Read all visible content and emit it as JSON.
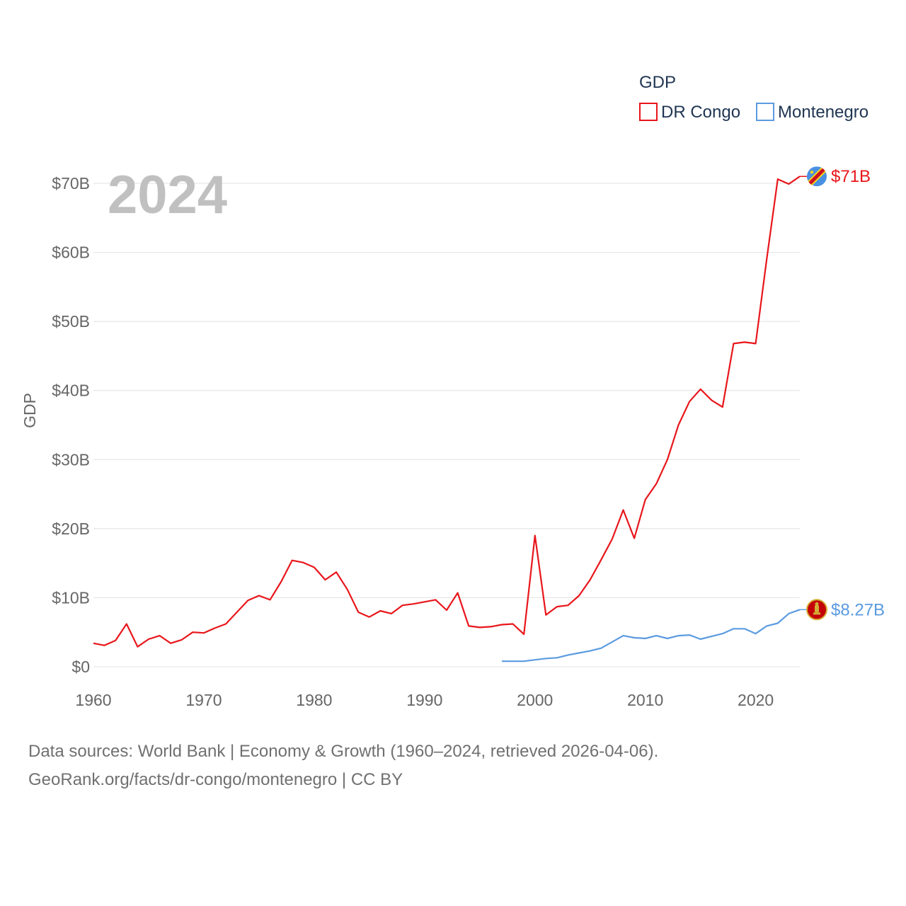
{
  "footer": {
    "line1": "Data sources: World Bank | Economy & Growth (1960–2024, retrieved 2026-04-06).",
    "line2": "GeoRank.org/facts/dr-congo/montenegro | CC BY"
  },
  "chart_data": {
    "type": "line",
    "title": "GDP",
    "year_label": "2024",
    "ylabel": "GDP",
    "xlabel": "",
    "xlim": [
      1960,
      2024
    ],
    "ylim": [
      0,
      70
    ],
    "x_ticks": [
      "1960",
      "1970",
      "1980",
      "1990",
      "2000",
      "2010",
      "2020"
    ],
    "y_ticks": [
      "$0",
      "$10B",
      "$20B",
      "$30B",
      "$40B",
      "$50B",
      "$60B",
      "$70B"
    ],
    "legend_position": "top-right",
    "series": [
      {
        "name": "DR Congo",
        "color": "#e8161b",
        "end_label": "$71B",
        "x": [
          1960,
          1961,
          1962,
          1963,
          1964,
          1965,
          1966,
          1967,
          1968,
          1969,
          1970,
          1971,
          1972,
          1973,
          1974,
          1975,
          1976,
          1977,
          1978,
          1979,
          1980,
          1981,
          1982,
          1983,
          1984,
          1985,
          1986,
          1987,
          1988,
          1989,
          1990,
          1991,
          1992,
          1993,
          1994,
          1995,
          1996,
          1997,
          1998,
          1999,
          2000,
          2001,
          2002,
          2003,
          2004,
          2005,
          2006,
          2007,
          2008,
          2009,
          2010,
          2011,
          2012,
          2013,
          2014,
          2015,
          2016,
          2017,
          2018,
          2019,
          2020,
          2021,
          2022,
          2023,
          2024
        ],
        "values": [
          3.4,
          3.1,
          3.8,
          6.2,
          2.9,
          4.0,
          4.5,
          3.4,
          3.9,
          5.0,
          4.9,
          5.6,
          6.2,
          7.9,
          9.6,
          10.3,
          9.7,
          12.3,
          15.4,
          15.1,
          14.4,
          12.6,
          13.7,
          11.2,
          7.9,
          7.2,
          8.1,
          7.7,
          8.9,
          9.1,
          9.4,
          9.7,
          8.2,
          10.7,
          5.9,
          5.7,
          5.8,
          6.1,
          6.2,
          4.7,
          19.0,
          7.5,
          8.7,
          8.9,
          10.3,
          12.6,
          15.5,
          18.5,
          22.7,
          18.6,
          24.2,
          26.5,
          30.0,
          35.0,
          38.4,
          40.2,
          38.6,
          37.6,
          46.8,
          47.0,
          46.8,
          59.0,
          70.6,
          69.9,
          71.0
        ]
      },
      {
        "name": "Montenegro",
        "color": "#5b9be0",
        "end_label": "$8.27B",
        "x": [
          1997,
          1998,
          1999,
          2000,
          2001,
          2002,
          2003,
          2004,
          2005,
          2006,
          2007,
          2008,
          2009,
          2010,
          2011,
          2012,
          2013,
          2014,
          2015,
          2016,
          2017,
          2018,
          2019,
          2020,
          2021,
          2022,
          2023,
          2024
        ],
        "values": [
          0.8,
          0.8,
          0.8,
          1.0,
          1.2,
          1.3,
          1.7,
          2.0,
          2.3,
          2.7,
          3.6,
          4.5,
          4.2,
          4.1,
          4.5,
          4.1,
          4.5,
          4.6,
          4.0,
          4.4,
          4.8,
          5.5,
          5.5,
          4.8,
          5.9,
          6.3,
          7.7,
          8.27
        ]
      }
    ]
  }
}
